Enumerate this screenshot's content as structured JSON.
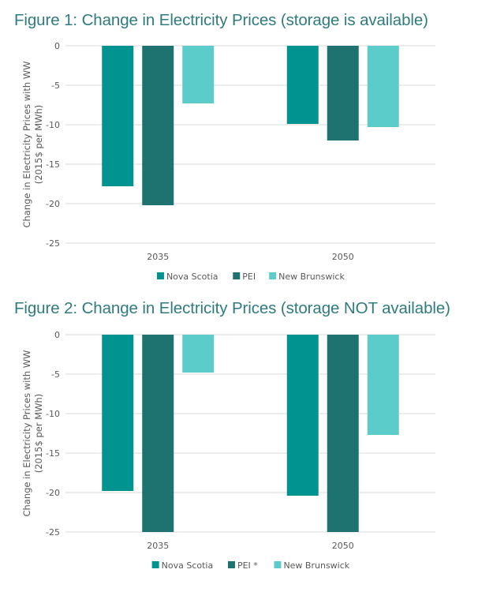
{
  "chart_data": [
    {
      "type": "bar",
      "title": "Figure 1: Change in Electricity Prices (storage is available)",
      "xlabel": "",
      "ylabel": "Change in Electricity Prices with WW (2015$ per MWh)",
      "ylabel_lines": [
        "Change in Electricity Prices with WW",
        "(2015$ per MWh)"
      ],
      "ylim": [
        -25,
        0
      ],
      "yticks": [
        0,
        -5,
        -10,
        -15,
        -20,
        -25
      ],
      "grid": true,
      "legend_position": "bottom",
      "categories": [
        "2035",
        "2050"
      ],
      "series": [
        {
          "name": "Nova Scotia",
          "color": "#009390",
          "values": [
            -17.8,
            -9.9
          ]
        },
        {
          "name": "PEI",
          "color": "#1e7370",
          "values": [
            -20.2,
            -12.0
          ]
        },
        {
          "name": "New Brunswick",
          "color": "#5ccccb",
          "values": [
            -7.3,
            -10.3
          ]
        }
      ]
    },
    {
      "type": "bar",
      "title": "Figure 2: Change in Electricity Prices (storage NOT available)",
      "xlabel": "",
      "ylabel": "Change in Electricity Prices with WW (2015$ per MWh)",
      "ylabel_lines": [
        "Change in Electricity Prices with WW",
        "(2015$ per MWh)"
      ],
      "ylim": [
        -25,
        0
      ],
      "yticks": [
        0,
        -5,
        -10,
        -15,
        -20,
        -25
      ],
      "grid": true,
      "legend_position": "bottom",
      "categories": [
        "2035",
        "2050"
      ],
      "series": [
        {
          "name": "Nova Scotia",
          "color": "#009390",
          "values": [
            -19.8,
            -20.4
          ]
        },
        {
          "name": "PEI *",
          "color": "#1e7370",
          "values": [
            -25,
            -25
          ]
        },
        {
          "name": "New Brunswick",
          "color": "#5ccccb",
          "values": [
            -4.8,
            -12.7
          ]
        }
      ]
    }
  ]
}
